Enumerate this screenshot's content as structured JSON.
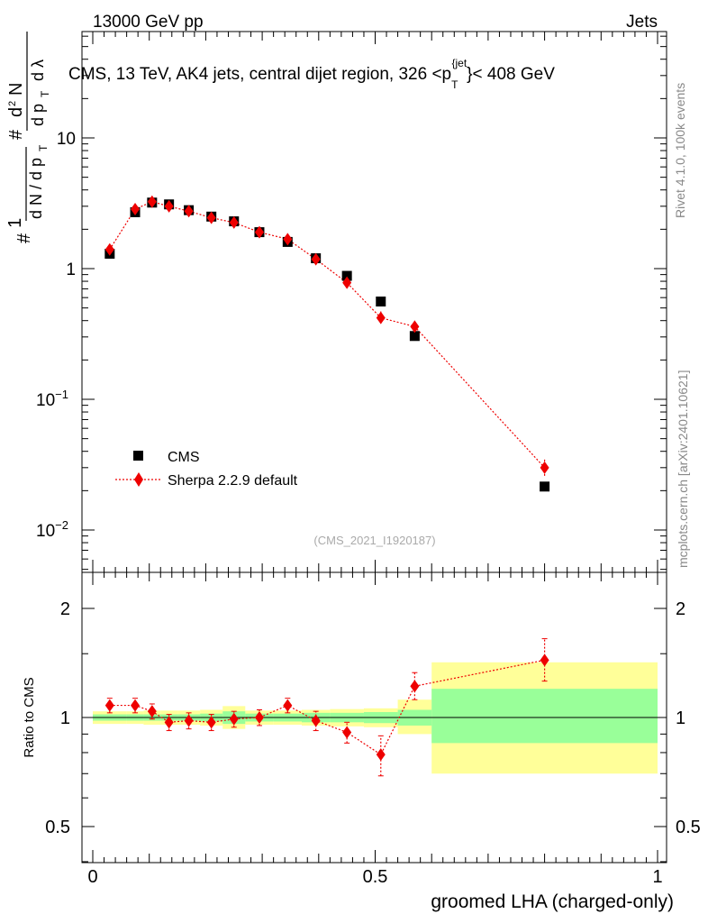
{
  "header": {
    "left_label": "13000 GeV pp",
    "right_label": "Jets"
  },
  "side_labels": {
    "rivet": "Rivet 4.1.0,  100k events",
    "mcplots": "mcplots.cern.ch [arXiv:2401.10621]"
  },
  "chart_data": [
    {
      "type": "scatter",
      "title": "CMS, 13 TeV, AK4 jets, central dijet region, 326 <p",
      "title_sub": "T",
      "title_sup": "{jet",
      "title_end": "}< 408 GeV",
      "ylabel": "1/dN/dp_T dN^2/dp_T dλ",
      "yscale": "log",
      "ylim": [
        0.005,
        80
      ],
      "xlim": [
        -0.02,
        1.0
      ],
      "yticks": [
        {
          "value": 0.01,
          "base": "10",
          "exp": "−2"
        },
        {
          "value": 0.1,
          "base": "10",
          "exp": "−1"
        },
        {
          "value": 1,
          "base": "1",
          "exp": ""
        },
        {
          "value": 10,
          "base": "10",
          "exp": ""
        }
      ],
      "watermark": "(CMS_2021_I1920187)",
      "legend": {
        "position": "lower-left",
        "entries": [
          "CMS",
          "Sherpa 2.2.9 default"
        ]
      },
      "series": [
        {
          "name": "CMS",
          "marker": "square",
          "color": "#000000",
          "x": [
            0.03,
            0.075,
            0.105,
            0.135,
            0.17,
            0.21,
            0.25,
            0.295,
            0.345,
            0.395,
            0.45,
            0.51,
            0.57,
            0.8
          ],
          "y": [
            1.3,
            2.7,
            3.2,
            3.1,
            2.8,
            2.5,
            2.3,
            1.9,
            1.6,
            1.2,
            0.88,
            0.56,
            0.305,
            0.0215
          ]
        },
        {
          "name": "Sherpa 2.2.9 default",
          "marker": "diamond",
          "color": "#ee0000",
          "line": "dotted",
          "x": [
            0.03,
            0.075,
            0.105,
            0.135,
            0.17,
            0.21,
            0.25,
            0.295,
            0.345,
            0.395,
            0.45,
            0.51,
            0.57,
            0.8
          ],
          "y": [
            1.4,
            2.85,
            3.25,
            3.0,
            2.75,
            2.45,
            2.25,
            1.9,
            1.68,
            1.18,
            0.78,
            0.42,
            0.36,
            0.03
          ],
          "err_lo": [
            1.32,
            2.7,
            3.1,
            2.88,
            2.63,
            2.34,
            2.15,
            1.82,
            1.6,
            1.12,
            0.72,
            0.38,
            0.33,
            0.026
          ],
          "err_hi": [
            1.48,
            3.0,
            3.4,
            3.12,
            2.87,
            2.56,
            2.35,
            1.98,
            1.76,
            1.24,
            0.84,
            0.47,
            0.4,
            0.035
          ]
        }
      ]
    },
    {
      "type": "scatter",
      "title": "",
      "xlabel": "groomed LHA (charged-only)",
      "ylabel": "Ratio to CMS",
      "yscale": "log",
      "ylim": [
        0.4,
        2.5
      ],
      "xlim": [
        -0.02,
        1.0
      ],
      "xticks": [
        "0",
        "0.5",
        "1"
      ],
      "xtick_values": [
        0,
        0.5,
        1
      ],
      "yticks_labels": [
        "0.5",
        "1",
        "2"
      ],
      "yticks_values": [
        0.5,
        1,
        2
      ],
      "reference_line": 1,
      "bands": {
        "edges": [
          0.0,
          0.06,
          0.09,
          0.12,
          0.15,
          0.19,
          0.23,
          0.27,
          0.32,
          0.37,
          0.42,
          0.48,
          0.54,
          0.6,
          1.0
        ],
        "stat_lo": [
          0.98,
          0.98,
          0.98,
          0.98,
          0.98,
          0.975,
          0.96,
          0.975,
          0.975,
          0.97,
          0.97,
          0.965,
          0.95,
          0.85
        ],
        "stat_hi": [
          1.02,
          1.02,
          1.02,
          1.02,
          1.02,
          1.025,
          1.04,
          1.025,
          1.025,
          1.03,
          1.03,
          1.035,
          1.05,
          1.2
        ],
        "total_lo": [
          0.96,
          0.96,
          0.955,
          0.955,
          0.955,
          0.95,
          0.93,
          0.955,
          0.955,
          0.95,
          0.945,
          0.94,
          0.9,
          0.7
        ],
        "total_hi": [
          1.04,
          1.04,
          1.045,
          1.045,
          1.045,
          1.05,
          1.075,
          1.045,
          1.045,
          1.05,
          1.055,
          1.06,
          1.12,
          1.42
        ]
      },
      "series": [
        {
          "name": "Sherpa 2.2.9 default",
          "x": [
            0.03,
            0.075,
            0.105,
            0.135,
            0.17,
            0.21,
            0.25,
            0.295,
            0.345,
            0.395,
            0.45,
            0.51,
            0.57,
            0.8
          ],
          "y": [
            1.08,
            1.08,
            1.04,
            0.97,
            0.98,
            0.97,
            0.99,
            1.0,
            1.08,
            0.98,
            0.91,
            0.79,
            1.22,
            1.44
          ],
          "err_lo": [
            1.03,
            1.03,
            0.99,
            0.92,
            0.93,
            0.92,
            0.94,
            0.95,
            1.03,
            0.92,
            0.85,
            0.69,
            1.12,
            1.26
          ],
          "err_hi": [
            1.13,
            1.13,
            1.09,
            1.02,
            1.03,
            1.02,
            1.04,
            1.05,
            1.13,
            1.04,
            0.97,
            0.89,
            1.33,
            1.65
          ]
        }
      ]
    }
  ]
}
